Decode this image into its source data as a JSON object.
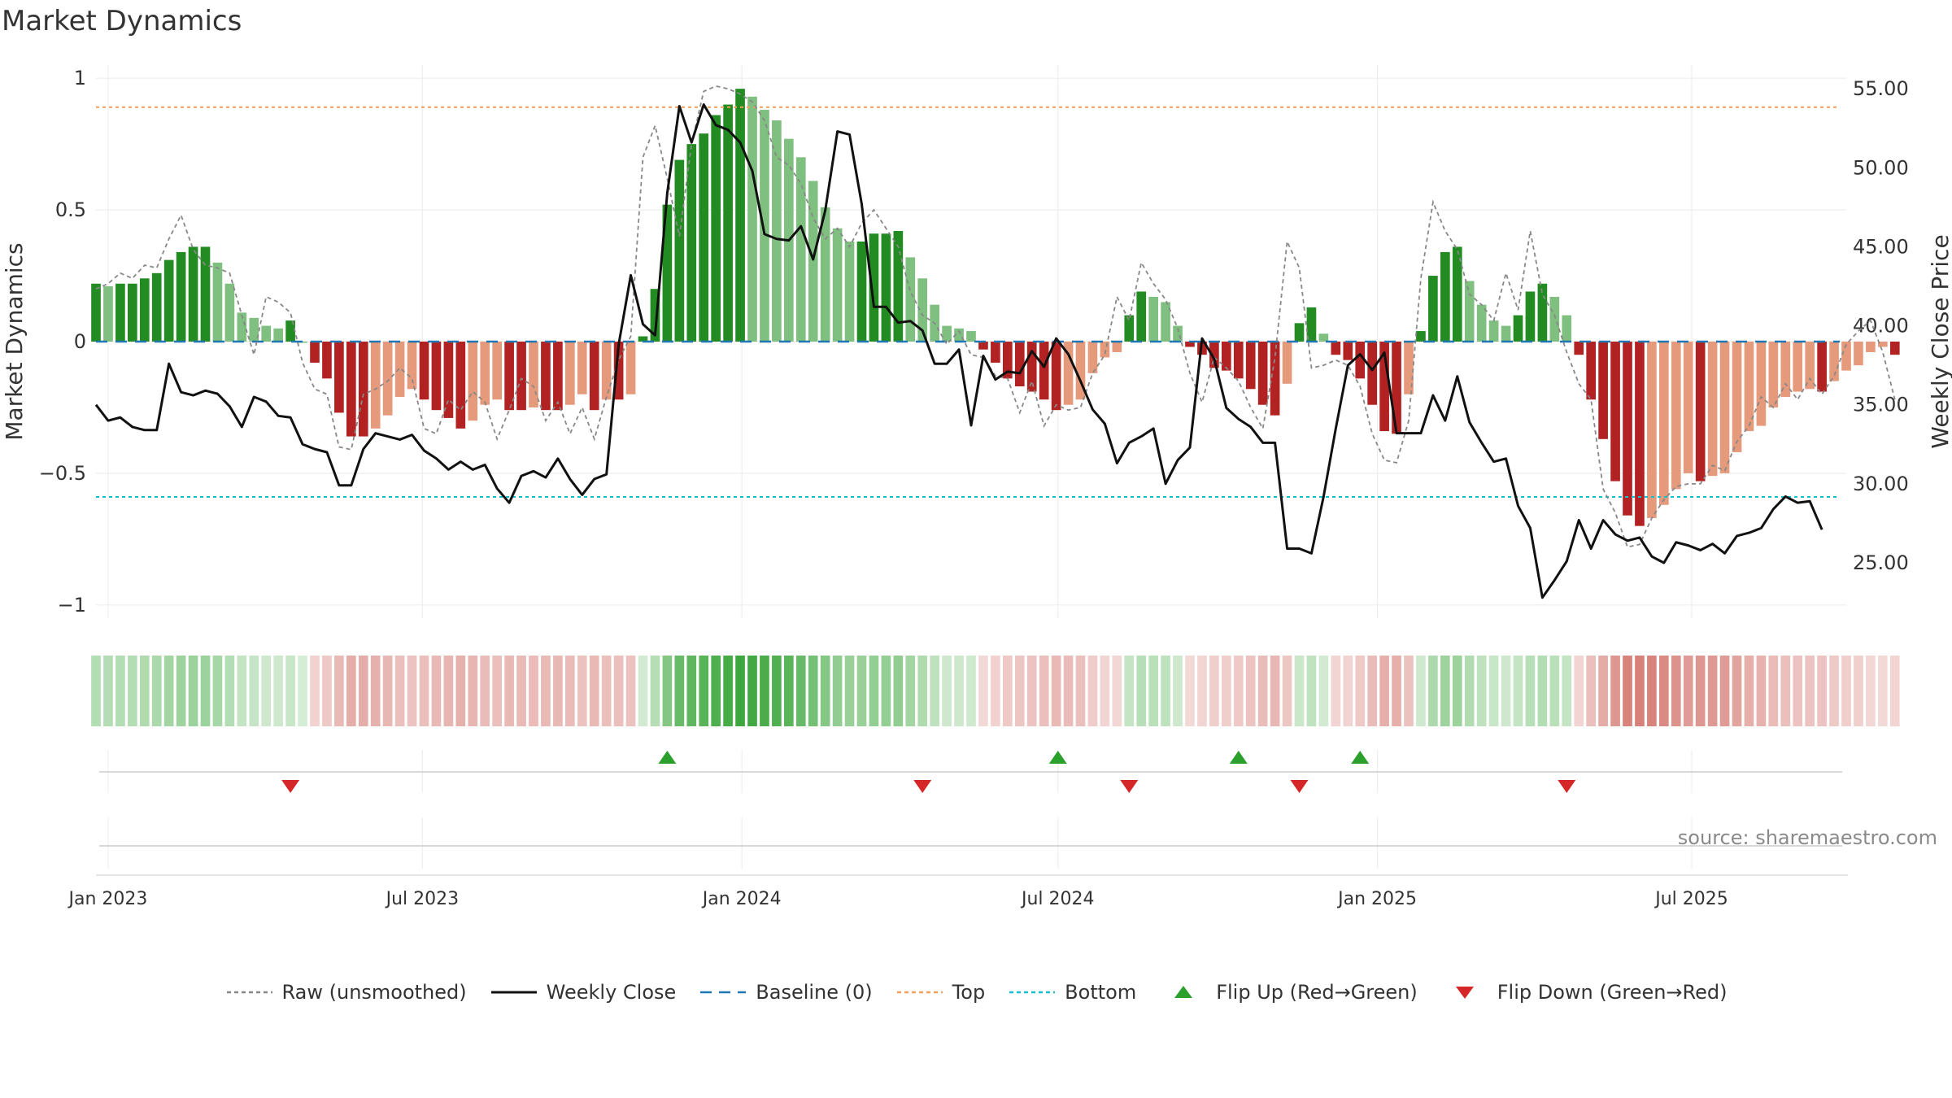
{
  "title": "Market Dynamics",
  "source": "source: sharemaestro.com",
  "colors": {
    "strong_green": "#228B22",
    "light_green": "#7fbf7f",
    "strong_red": "#b22222",
    "light_red": "#e59a7c",
    "close_line": "#111111",
    "raw_line": "#888888",
    "baseline": "#1f77b4",
    "top": "#f0a05a",
    "bottom": "#17becf",
    "flip_up": "#2ca02c",
    "flip_down": "#d62728"
  },
  "chart_data": {
    "type": "bar+line",
    "x_axis": {
      "start": "2022-12-25",
      "end": "2025-09-28",
      "ticks": [
        "2023-01-01",
        "2023-07-01",
        "2024-01-01",
        "2024-07-01",
        "2025-01-01",
        "2025-07-01"
      ],
      "tick_labels": [
        "Jan 2023",
        "Jul 2023",
        "Jan 2024",
        "Jul 2024",
        "Jan 2025",
        "Jul 2025"
      ]
    },
    "y_left": {
      "label": "Market Dynamics",
      "lim": [
        -1.05,
        1.05
      ],
      "ticks": [
        -1,
        -0.5,
        0,
        0.5,
        1
      ],
      "tick_labels": [
        "−1",
        "−0.5",
        "0",
        "0.5",
        "1"
      ]
    },
    "y_right": {
      "label": "Weekly Close Price",
      "lim": [
        21.5,
        56.5
      ],
      "ticks": [
        25,
        30,
        35,
        40,
        45,
        50,
        55
      ],
      "tick_labels": [
        "25.00",
        "30.00",
        "35.00",
        "40.00",
        "45.00",
        "50.00",
        "55.00"
      ]
    },
    "top_level": 0.89,
    "bottom_level": -0.59,
    "baseline": 0,
    "market_dynamics": {
      "start": "2022-12-25",
      "interval_days": 7,
      "values": [
        0.22,
        0.21,
        0.22,
        0.22,
        0.24,
        0.26,
        0.31,
        0.34,
        0.36,
        0.36,
        0.3,
        0.22,
        0.11,
        0.09,
        0.06,
        0.05,
        0.08,
        0.0,
        -0.08,
        -0.14,
        -0.27,
        -0.36,
        -0.36,
        -0.33,
        -0.28,
        -0.21,
        -0.18,
        -0.22,
        -0.26,
        -0.29,
        -0.33,
        -0.3,
        -0.24,
        -0.22,
        -0.26,
        -0.26,
        -0.25,
        -0.26,
        -0.26,
        -0.24,
        -0.2,
        -0.26,
        -0.22,
        -0.22,
        -0.2,
        0.02,
        0.2,
        0.52,
        0.69,
        0.75,
        0.79,
        0.86,
        0.9,
        0.96,
        0.93,
        0.88,
        0.84,
        0.77,
        0.7,
        0.61,
        0.51,
        0.43,
        0.38,
        0.38,
        0.41,
        0.41,
        0.42,
        0.32,
        0.24,
        0.14,
        0.06,
        0.05,
        0.04,
        -0.03,
        -0.08,
        -0.14,
        -0.17,
        -0.19,
        -0.22,
        -0.26,
        -0.24,
        -0.22,
        -0.12,
        -0.06,
        -0.04,
        0.1,
        0.19,
        0.17,
        0.15,
        0.06,
        -0.02,
        -0.05,
        -0.1,
        -0.11,
        -0.14,
        -0.18,
        -0.24,
        -0.28,
        -0.16,
        0.07,
        0.13,
        0.03,
        -0.05,
        -0.07,
        -0.14,
        -0.24,
        -0.34,
        -0.35,
        -0.2,
        0.04,
        0.25,
        0.34,
        0.36,
        0.23,
        0.14,
        0.08,
        0.06,
        0.1,
        0.19,
        0.22,
        0.17,
        0.1,
        -0.05,
        -0.22,
        -0.37,
        -0.53,
        -0.66,
        -0.7,
        -0.67,
        -0.62,
        -0.56,
        -0.5,
        -0.53,
        -0.51,
        -0.5,
        -0.42,
        -0.34,
        -0.32,
        -0.25,
        -0.21,
        -0.19,
        -0.18,
        -0.19,
        -0.15,
        -0.11,
        -0.09,
        -0.04,
        -0.02,
        -0.05
      ]
    },
    "raw_unsmoothed": {
      "start": "2022-12-25",
      "interval_days": 7,
      "values": [
        0.2,
        0.22,
        0.26,
        0.24,
        0.29,
        0.28,
        0.39,
        0.48,
        0.35,
        0.29,
        0.28,
        0.26,
        0.1,
        -0.05,
        0.17,
        0.15,
        0.11,
        -0.08,
        -0.18,
        -0.2,
        -0.4,
        -0.41,
        -0.2,
        -0.18,
        -0.15,
        -0.1,
        -0.14,
        -0.33,
        -0.35,
        -0.22,
        -0.26,
        -0.19,
        -0.23,
        -0.37,
        -0.26,
        -0.14,
        -0.17,
        -0.3,
        -0.23,
        -0.35,
        -0.25,
        -0.37,
        -0.21,
        -0.07,
        0.02,
        0.7,
        0.82,
        0.62,
        0.4,
        0.75,
        0.95,
        0.97,
        0.96,
        0.94,
        0.91,
        0.84,
        0.7,
        0.67,
        0.6,
        0.47,
        0.39,
        0.43,
        0.36,
        0.45,
        0.5,
        0.43,
        0.36,
        0.19,
        0.1,
        0.07,
        -0.01,
        0.04,
        -0.05,
        -0.06,
        -0.13,
        -0.14,
        -0.27,
        -0.15,
        -0.32,
        -0.24,
        -0.26,
        -0.25,
        -0.12,
        -0.05,
        0.17,
        0.08,
        0.3,
        0.22,
        0.16,
        0.05,
        -0.12,
        -0.23,
        -0.06,
        -0.1,
        -0.15,
        -0.25,
        -0.33,
        -0.06,
        0.38,
        0.28,
        -0.1,
        -0.09,
        -0.07,
        -0.09,
        -0.17,
        -0.35,
        -0.45,
        -0.46,
        -0.3,
        0.24,
        0.53,
        0.42,
        0.35,
        0.18,
        0.14,
        0.08,
        0.26,
        0.12,
        0.42,
        0.18,
        0.1,
        -0.04,
        -0.16,
        -0.22,
        -0.56,
        -0.65,
        -0.78,
        -0.77,
        -0.67,
        -0.6,
        -0.55,
        -0.54,
        -0.54,
        -0.47,
        -0.49,
        -0.38,
        -0.32,
        -0.21,
        -0.25,
        -0.16,
        -0.22,
        -0.14,
        -0.2,
        -0.13,
        -0.01,
        0.04,
        0.08,
        -0.04,
        -0.22
      ]
    },
    "weekly_close": {
      "start": "2022-12-25",
      "interval_days": 7,
      "values": [
        35.0,
        34.0,
        34.2,
        33.6,
        33.4,
        33.4,
        37.6,
        35.8,
        35.6,
        35.9,
        35.7,
        34.9,
        33.6,
        35.5,
        35.2,
        34.3,
        34.2,
        32.5,
        32.2,
        32.0,
        29.9,
        29.9,
        32.2,
        33.2,
        33.0,
        32.8,
        33.1,
        32.1,
        31.6,
        30.9,
        31.4,
        30.9,
        31.2,
        29.7,
        28.8,
        30.5,
        30.8,
        30.4,
        31.6,
        30.3,
        29.3,
        30.3,
        30.6,
        38.8,
        43.2,
        40.1,
        39.4,
        48.4,
        53.9,
        51.6,
        54.0,
        52.7,
        52.4,
        51.6,
        49.8,
        45.8,
        45.5,
        45.4,
        46.3,
        44.2,
        47.3,
        52.3,
        52.1,
        47.7,
        41.2,
        41.2,
        40.2,
        40.3,
        39.7,
        37.6,
        37.6,
        38.5,
        33.7,
        38.1,
        36.6,
        37.1,
        37.0,
        38.4,
        37.4,
        39.2,
        38.2,
        36.5,
        34.7,
        33.8,
        31.3,
        32.6,
        33.0,
        33.5,
        30.0,
        31.5,
        32.3,
        39.2,
        37.9,
        34.8,
        34.1,
        33.6,
        32.6,
        32.6,
        25.9,
        25.9,
        25.6,
        29.2,
        33.5,
        37.5,
        38.2,
        37.2,
        38.3,
        33.2,
        33.2,
        33.2,
        35.6,
        34.0,
        36.8,
        33.9,
        32.6,
        31.4,
        31.6,
        28.6,
        27.2,
        22.8,
        23.9,
        25.1,
        27.7,
        25.9,
        27.7,
        26.8,
        26.4,
        26.6,
        25.4,
        25.0,
        26.3,
        26.1,
        25.8,
        26.2,
        25.6,
        26.7,
        26.9,
        27.2,
        28.4,
        29.2,
        28.8,
        28.9,
        27.1
      ]
    },
    "flip_up_dates": [
      "2023-11-19",
      "2024-07-01",
      "2024-10-13",
      "2024-12-22"
    ],
    "flip_down_dates": [
      "2023-04-16",
      "2024-04-14",
      "2024-08-11",
      "2024-11-17",
      "2025-04-20"
    ],
    "legend": [
      {
        "label": "Raw (unsmoothed)",
        "symbol": "dotted",
        "color_key": "raw_line"
      },
      {
        "label": "Weekly Close",
        "symbol": "solid",
        "color_key": "close_line"
      },
      {
        "label": "Baseline (0)",
        "symbol": "dashed",
        "color_key": "baseline"
      },
      {
        "label": "Top",
        "symbol": "dotted",
        "color_key": "top"
      },
      {
        "label": "Bottom",
        "symbol": "dotted",
        "color_key": "bottom"
      },
      {
        "label": "Flip Up (Red→Green)",
        "symbol": "triangle-up",
        "color_key": "flip_up"
      },
      {
        "label": "Flip Down (Green→Red)",
        "symbol": "triangle-down",
        "color_key": "flip_down"
      }
    ],
    "legend_position": "bottom-center",
    "grid": true
  }
}
